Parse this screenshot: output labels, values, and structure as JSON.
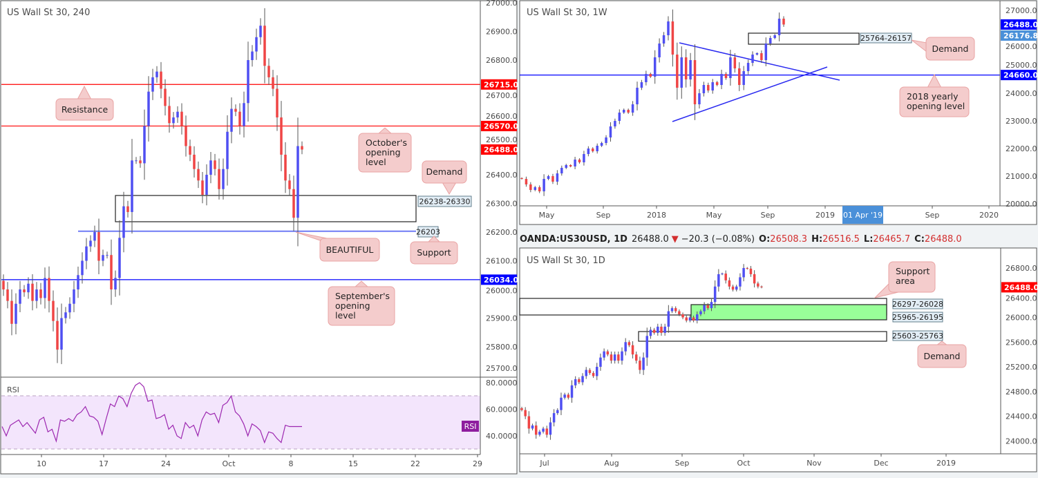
{
  "colors": {
    "bull": "#4f4ff2",
    "bear": "#ef4545",
    "wick": "#555555",
    "resistance": "#ff0000",
    "blue_level": "#0000ff",
    "support_line": "#6f7cf5",
    "rsi_line": "#9c27b0",
    "rsi_band": "#f3e5fc",
    "zone_green": "#99ff99",
    "tag_light_blue": "#4a90d9",
    "rsi_tag": "#8e1c9e"
  },
  "h4": {
    "title": "US Wall St 30, 240",
    "price_tags": [
      {
        "label": "26715.0",
        "color": "#ff0000"
      },
      {
        "label": "26570.0",
        "color": "#ff0000"
      },
      {
        "label": "26488.0",
        "color": "#ff0000"
      },
      {
        "label": "26034.0",
        "color": "#0000ff"
      }
    ],
    "zones": {
      "demand": "26238-26330",
      "support": "26203"
    },
    "callouts": {
      "resistance": "Resistance",
      "october": [
        "October's",
        "opening",
        "level"
      ],
      "demand": "Demand",
      "beautiful": "BEAUTIFUL",
      "support": "Support",
      "september": [
        "September's",
        "opening",
        "level"
      ]
    },
    "rsi": {
      "label": "RSI",
      "tag": "RSI"
    }
  },
  "weekly": {
    "title": "US Wall St 30, 1W",
    "price_tags": [
      {
        "label": "26488.0",
        "color": "#0000ff"
      },
      {
        "label": "26176.8",
        "color": "#4a90d9"
      },
      {
        "label": "24660.0",
        "color": "#0000ff"
      }
    ],
    "zones": {
      "demand": "25764-26157"
    },
    "callouts": {
      "demand": "Demand",
      "yearly": [
        "2018 yearly",
        "opening level"
      ]
    },
    "crosshair_date": "01 Apr '19"
  },
  "daily": {
    "header": {
      "symbol": "OANDA:US30USD, 1D",
      "last": "26488.0",
      "arrow": "▼",
      "change": "−20.3 (−0.08%)",
      "o_label": "O:",
      "o": "26508.3",
      "h_label": "H:",
      "h": "26516.5",
      "l_label": "L:",
      "l": "26465.7",
      "c_label": "C:",
      "c": "26488.0"
    },
    "title": "US Wall St 30, 1D",
    "price_tags": [
      {
        "label": "26488.0",
        "color": "#ff0000"
      }
    ],
    "zones": {
      "support_area": "26297-26028",
      "green": "25965-26195",
      "demand": "25603-25763"
    },
    "callouts": {
      "support_area": [
        "Support",
        "area"
      ],
      "demand": "Demand"
    }
  },
  "chart_data": [
    {
      "type": "candlestick",
      "title": "US Wall St 30, 240",
      "ylim": [
        25700,
        27000
      ],
      "y_ticks": [
        27000,
        26900,
        26800,
        26700,
        26600,
        26500,
        26400,
        26300,
        26200,
        26100,
        26000,
        25900,
        25800,
        25700
      ],
      "x_ticks": [
        "10",
        "17",
        "24",
        "Oct",
        "8",
        "15",
        "22",
        "29"
      ],
      "closes": [
        26000,
        25960,
        25880,
        25950,
        26000,
        25990,
        26020,
        25960,
        26000,
        25970,
        26040,
        25960,
        25890,
        25790,
        25900,
        25920,
        25950,
        26000,
        26050,
        26100,
        26150,
        26170,
        26200,
        26100,
        26120,
        26120,
        26000,
        26040,
        26180,
        26290,
        26270,
        26450,
        26450,
        26440,
        26570,
        26690,
        26740,
        26760,
        26700,
        26640,
        26580,
        26600,
        26620,
        26570,
        26500,
        26470,
        26420,
        26380,
        26330,
        26400,
        26450,
        26420,
        26350,
        26420,
        26550,
        26630,
        26620,
        26570,
        26650,
        26800,
        26830,
        26880,
        26920,
        26780,
        26740,
        26700,
        26600,
        26470,
        26380,
        26350,
        26250,
        26500,
        26488
      ],
      "levels": {
        "resistance": 26715,
        "october_open": 26570,
        "september_open": 26034,
        "support": 26203,
        "demand_zone": [
          26238,
          26330
        ]
      },
      "rsi": {
        "ylim": [
          25,
          82
        ],
        "y_ticks": [
          80,
          60,
          40
        ],
        "bands": [
          70,
          30
        ],
        "values": [
          47,
          40,
          48,
          50,
          52,
          47,
          50,
          46,
          42,
          52,
          54,
          43,
          45,
          36,
          52,
          51,
          53,
          51,
          56,
          58,
          62,
          55,
          54,
          51,
          41,
          53,
          64,
          62,
          70,
          68,
          62,
          72,
          78,
          80,
          77,
          66,
          67,
          53,
          54,
          56,
          45,
          48,
          40,
          38,
          50,
          46,
          48,
          40,
          52,
          58,
          56,
          57,
          50,
          63,
          65,
          70,
          58,
          55,
          49,
          40,
          49,
          47,
          44,
          35,
          43,
          42,
          38,
          35,
          48,
          47,
          47,
          47,
          47
        ]
      }
    },
    {
      "type": "candlestick",
      "title": "US Wall St 30, 1W",
      "ylim": [
        20000,
        27000
      ],
      "y_ticks": [
        27000,
        26000,
        25000,
        24000,
        23000,
        22000,
        21000,
        20000
      ],
      "x_ticks": [
        "May",
        "Sep",
        "2018",
        "May",
        "Sep",
        "2019",
        "Sep",
        "2020"
      ],
      "closes": [
        20900,
        20700,
        20500,
        20600,
        20450,
        20900,
        21000,
        20800,
        21100,
        21300,
        21400,
        21350,
        21600,
        21500,
        21800,
        22000,
        21900,
        22100,
        22200,
        22400,
        22800,
        23000,
        23300,
        23400,
        23300,
        23600,
        24200,
        24400,
        24700,
        24600,
        25300,
        25800,
        26100,
        26600,
        25400,
        24200,
        25300,
        24500,
        25200,
        23600,
        24000,
        24300,
        24100,
        24400,
        24300,
        24700,
        24550,
        25300,
        24900,
        24300,
        24800,
        25100,
        25400,
        25450,
        25200,
        25800,
        26000,
        26100,
        26700,
        26488
      ],
      "levels": {
        "yearly_open_2018": 24660,
        "demand_zone": [
          25764,
          26157
        ]
      }
    },
    {
      "type": "candlestick",
      "title": "US Wall St 30, 1D",
      "ylim": [
        23800,
        27000
      ],
      "y_ticks": [
        26800,
        26400,
        26000,
        25600,
        25200,
        24800,
        24400,
        24000
      ],
      "x_ticks": [
        "Jul",
        "Aug",
        "Sep",
        "Oct",
        "Nov",
        "Dec",
        "2019"
      ],
      "closes": [
        24500,
        24400,
        24200,
        24250,
        24100,
        24150,
        24200,
        24100,
        24300,
        24450,
        24500,
        24700,
        24750,
        24700,
        24900,
        25000,
        24950,
        25050,
        25150,
        25100,
        25050,
        25200,
        25350,
        25450,
        25400,
        25300,
        25400,
        25300,
        25450,
        25600,
        25550,
        25400,
        25300,
        25150,
        25350,
        25700,
        25800,
        25750,
        25850,
        25750,
        25850,
        26100,
        26150,
        26100,
        26050,
        26000,
        25950,
        26000,
        25950,
        26050,
        26100,
        26200,
        26150,
        26250,
        26500,
        26700,
        26710,
        26600,
        26500,
        26450,
        26500,
        26650,
        26800,
        26790,
        26700,
        26550,
        26500,
        26488
      ],
      "levels": {
        "support_area": [
          26028,
          26297
        ],
        "green_zone": [
          25965,
          26195
        ],
        "demand_zone": [
          25603,
          25763
        ]
      }
    }
  ]
}
